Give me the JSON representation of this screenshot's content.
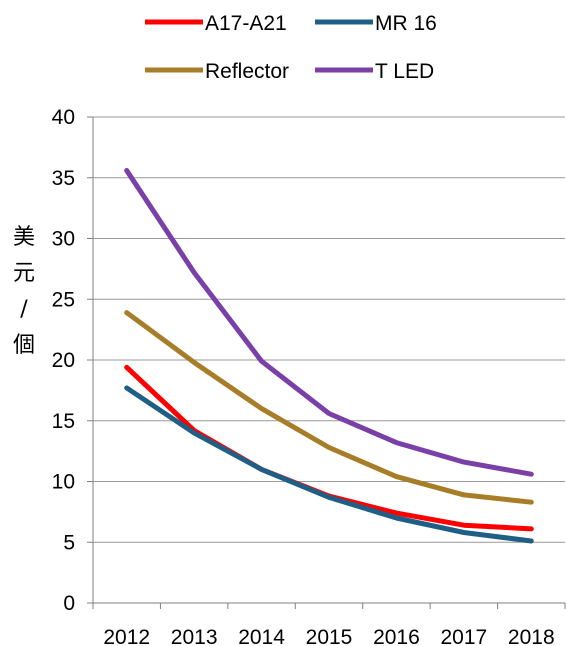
{
  "chart_data": {
    "type": "line",
    "title": "",
    "xlabel": "",
    "ylabel": "美元/個",
    "categories": [
      "2012",
      "2013",
      "2014",
      "2015",
      "2016",
      "2017",
      "2018"
    ],
    "ylim": [
      0,
      40
    ],
    "yticks": [
      0,
      5,
      10,
      15,
      20,
      25,
      30,
      35,
      40
    ],
    "grid": true,
    "legend_position": "top",
    "series": [
      {
        "name": "A17-A21",
        "color": "#ff0000",
        "values": [
          19.4,
          14.2,
          11.0,
          8.8,
          7.4,
          6.4,
          6.1
        ]
      },
      {
        "name": "MR 16",
        "color": "#1f5f86",
        "values": [
          17.7,
          14.0,
          11.0,
          8.7,
          7.0,
          5.8,
          5.1
        ]
      },
      {
        "name": "Reflector",
        "color": "#a87d27",
        "values": [
          23.9,
          19.8,
          16.0,
          12.8,
          10.4,
          8.9,
          8.3
        ]
      },
      {
        "name": "T LED",
        "color": "#7b3fa8",
        "values": [
          35.6,
          27.2,
          19.9,
          15.6,
          13.2,
          11.6,
          10.6
        ]
      }
    ]
  }
}
